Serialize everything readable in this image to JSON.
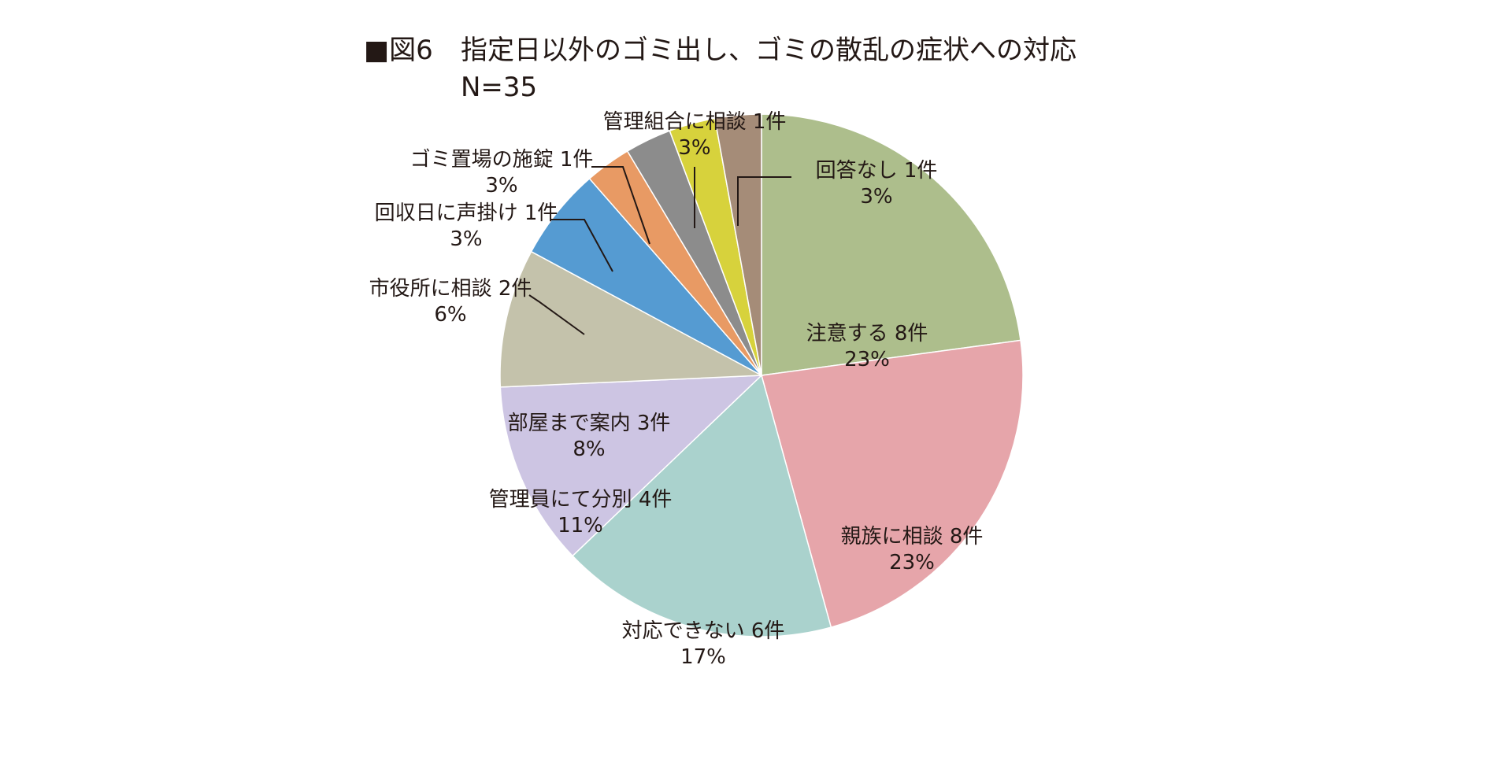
{
  "header": {
    "figure_marker": "■図6",
    "title": "指定日以外のゴミ出し、ゴミの散乱の症状への対応",
    "sample_size": "N=35"
  },
  "chart_data": {
    "type": "pie",
    "start_angle_deg": 0,
    "direction": "clockwise",
    "total": 35,
    "slices": [
      {
        "category": "注意する",
        "count_label": "8件",
        "count": 8,
        "percent_label": "23%",
        "color": "#adbe8c"
      },
      {
        "category": "親族に相談",
        "count_label": "8件",
        "count": 8,
        "percent_label": "23%",
        "color": "#e6a5aa"
      },
      {
        "category": "対応できない",
        "count_label": "6件",
        "count": 6,
        "percent_label": "17%",
        "color": "#aad2cd"
      },
      {
        "category": "管理員にて分別",
        "count_label": "4件",
        "count": 4,
        "percent_label": "11%",
        "color": "#cdc5e3"
      },
      {
        "category": "部屋まで案内",
        "count_label": "3件",
        "count": 3,
        "percent_label": "8%",
        "color": "#c4c2ab"
      },
      {
        "category": "市役所に相談",
        "count_label": "2件",
        "count": 2,
        "percent_label": "6%",
        "color": "#559bd2"
      },
      {
        "category": "回収日に声掛け",
        "count_label": "1件",
        "count": 1,
        "percent_label": "3%",
        "color": "#e89a64"
      },
      {
        "category": "ゴミ置場の施錠",
        "count_label": "1件",
        "count": 1,
        "percent_label": "3%",
        "color": "#8c8c8c"
      },
      {
        "category": "管理組合に相談",
        "count_label": "1件",
        "count": 1,
        "percent_label": "3%",
        "color": "#d7d23c"
      },
      {
        "category": "回答なし",
        "count_label": "1件",
        "count": 1,
        "percent_label": "3%",
        "color": "#a58c78"
      }
    ]
  }
}
